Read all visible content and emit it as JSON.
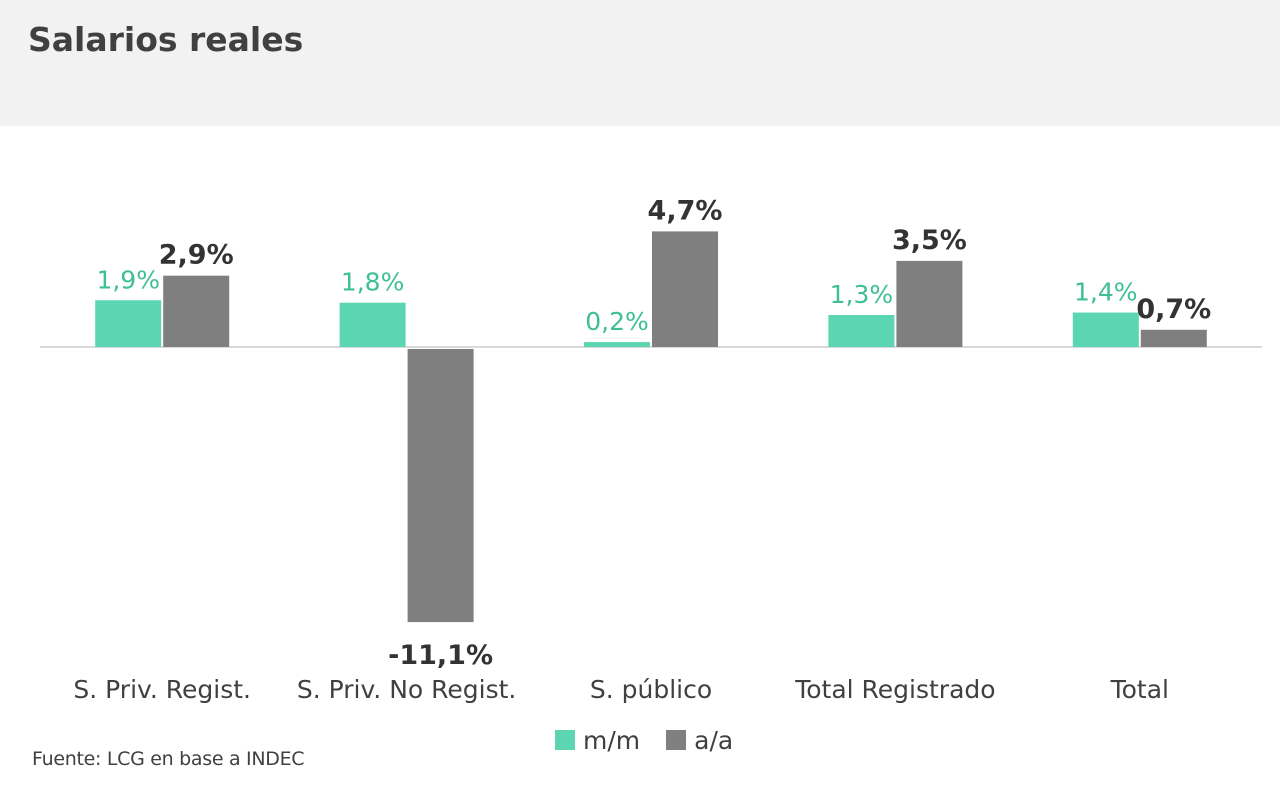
{
  "header": {
    "title": "Salarios reales"
  },
  "colors": {
    "mm": "#5cd6b2",
    "aa": "#7f7f7f",
    "mm_label": "#3fbf94",
    "aa_label": "#333333",
    "axis": "#d9d9d9"
  },
  "chart_data": {
    "type": "bar",
    "title": "Salarios reales",
    "categories": [
      "S. Priv. Regist.",
      "S. Priv. No Regist.",
      "S. público",
      "Total Registrado",
      "Total"
    ],
    "series": [
      {
        "name": "m/m",
        "values": [
          1.9,
          1.8,
          0.2,
          1.3,
          1.4
        ],
        "labels": [
          "1,9%",
          "1,8%",
          "0,2%",
          "1,3%",
          "1,4%"
        ]
      },
      {
        "name": "a/a",
        "values": [
          2.9,
          -11.1,
          4.7,
          3.5,
          0.7
        ],
        "labels": [
          "2,9%",
          "-11,1%",
          "4,7%",
          "3,5%",
          "0,7%"
        ]
      }
    ],
    "legend": "bottom",
    "grid": false,
    "source": "Fuente: LCG en base a INDEC"
  }
}
